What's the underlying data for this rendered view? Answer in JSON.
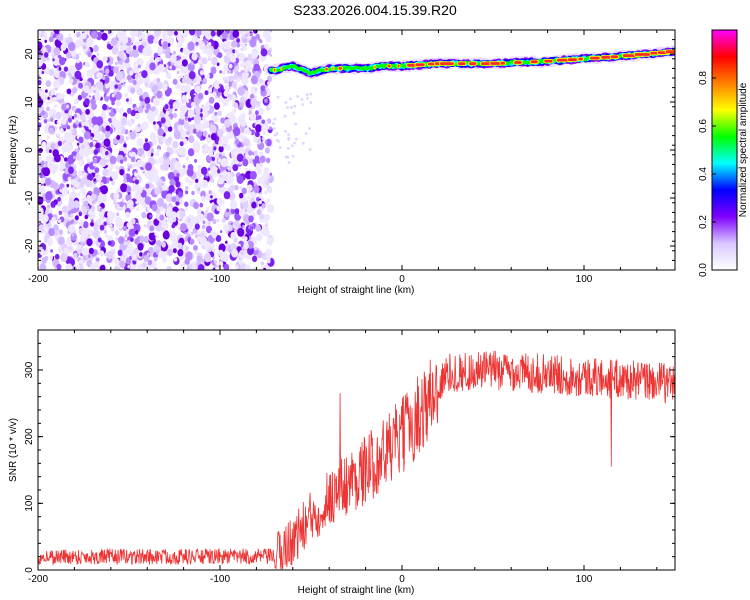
{
  "title": "S233.2026.004.15.39.R20",
  "chart_data": [
    {
      "type": "heatmap",
      "title": "S233.2026.004.15.39.R20",
      "xlabel": "Height of straight line (km)",
      "ylabel": "Frequency (Hz)",
      "xlim": [
        -200,
        150
      ],
      "ylim": [
        -25,
        25
      ],
      "xticks": [
        -200,
        -100,
        0,
        100
      ],
      "xtick_labels": [
        "-200",
        "-100",
        "0",
        "100"
      ],
      "yticks": [
        -20,
        -10,
        0,
        10,
        20
      ],
      "ytick_labels": [
        "-20",
        "-10",
        "0",
        "10",
        "20"
      ],
      "noise_region": [
        -200,
        -72
      ],
      "signal_track": [
        {
          "x": -72,
          "y": 16.5
        },
        {
          "x": -60,
          "y": 17.5
        },
        {
          "x": -50,
          "y": 16
        },
        {
          "x": -40,
          "y": 17
        },
        {
          "x": -30,
          "y": 17
        },
        {
          "x": -20,
          "y": 17
        },
        {
          "x": -10,
          "y": 17.5
        },
        {
          "x": 0,
          "y": 17.5
        },
        {
          "x": 20,
          "y": 18
        },
        {
          "x": 50,
          "y": 18
        },
        {
          "x": 80,
          "y": 18.5
        },
        {
          "x": 100,
          "y": 19
        },
        {
          "x": 120,
          "y": 19.5
        },
        {
          "x": 150,
          "y": 20.5
        }
      ],
      "colorbar": {
        "label": "Normalized spectral amplitude",
        "range": [
          0,
          1
        ],
        "ticks": [
          0.0,
          0.2,
          0.4,
          0.6,
          0.8
        ],
        "tick_labels": [
          "0.0",
          "0.2",
          "0.4",
          "0.6",
          "0.8"
        ],
        "colors": [
          "#ffffff",
          "#d9c8ff",
          "#8000ff",
          "#0000ff",
          "#00ffff",
          "#00ff00",
          "#ffff00",
          "#ff8000",
          "#ff0000",
          "#ff00ff"
        ]
      }
    },
    {
      "type": "line",
      "xlabel": "Height of straight line (km)",
      "ylabel": "SNR (10 * v/v)",
      "xlim": [
        -200,
        150
      ],
      "ylim": [
        0,
        360
      ],
      "xticks": [
        -200,
        -100,
        0,
        100
      ],
      "xtick_labels": [
        "-200",
        "-100",
        "0",
        "100"
      ],
      "yticks": [
        0,
        100,
        200,
        300
      ],
      "ytick_labels": [
        "0",
        "100",
        "200",
        "300"
      ],
      "color": "#ee3333",
      "series": [
        {
          "name": "SNR",
          "trend": [
            {
              "x": -200,
              "y": 20
            },
            {
              "x": -70,
              "y": 20
            },
            {
              "x": -60,
              "y": 45
            },
            {
              "x": -40,
              "y": 110
            },
            {
              "x": -20,
              "y": 150
            },
            {
              "x": 0,
              "y": 200
            },
            {
              "x": 15,
              "y": 255
            },
            {
              "x": 25,
              "y": 295
            },
            {
              "x": 50,
              "y": 300
            },
            {
              "x": 100,
              "y": 290
            },
            {
              "x": 150,
              "y": 280
            }
          ],
          "notable_points": [
            {
              "x": -34,
              "y": 265
            },
            {
              "x": 115,
              "y": 155
            }
          ]
        }
      ]
    }
  ]
}
